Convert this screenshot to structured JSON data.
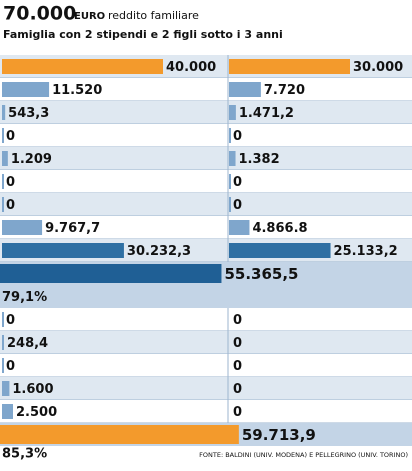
{
  "header": {
    "amount": "70.000",
    "unit": "EURO",
    "caption": "reddito familiare",
    "subtitle": "Famiglia con 2 stipendi e 2 figli sotto i 3 anni"
  },
  "section_a": [
    {
      "color": "#f39a2c",
      "left": {
        "value": 40000,
        "label": "40.000"
      },
      "right": {
        "value": 30000,
        "label": "30.000"
      }
    },
    {
      "color": "#7fa6cc",
      "left": {
        "value": 11520,
        "label": "11.520"
      },
      "right": {
        "value": 7720,
        "label": "7.720"
      }
    },
    {
      "color": "#7fa6cc",
      "left": {
        "value": 543.3,
        "label": "543,3"
      },
      "right": {
        "value": 1471.2,
        "label": "1.471,2"
      }
    },
    {
      "color": "#7fa6cc",
      "left": 0,
      "right": 0
    },
    {
      "color": "#7fa6cc",
      "left": {
        "value": 1209,
        "label": "1.209"
      },
      "right": {
        "value": 1382,
        "label": "1.382"
      }
    },
    {
      "color": "#7fa6cc",
      "left": 0,
      "right": 0
    },
    {
      "color": "#7fa6cc",
      "left": 0,
      "right": 0
    },
    {
      "color": "#7fa6cc",
      "left": {
        "value": 9767.7,
        "label": "9.767,7"
      },
      "right": {
        "value": 4866.8,
        "label": "4.866.8"
      }
    },
    {
      "color": "#2e6fa3",
      "left": {
        "value": 30232.3,
        "label": "30.232,3"
      },
      "right": {
        "value": 25133.2,
        "label": "25.133,2"
      }
    }
  ],
  "total_a": {
    "color": "#1f5f95",
    "value": 55365.5,
    "label": "55.365,5"
  },
  "share_a": "79,1%",
  "section_b": [
    {
      "color": "#7fa6cc",
      "left": 0,
      "right": 0
    },
    {
      "color": "#7fa6cc",
      "left": {
        "value": 248.4,
        "label": "248,4"
      },
      "right": 0
    },
    {
      "color": "#7fa6cc",
      "left": 0,
      "right": 0
    },
    {
      "color": "#7fa6cc",
      "left": {
        "value": 1600,
        "label": "1.600"
      },
      "right": 0
    },
    {
      "color": "#7fa6cc",
      "left": {
        "value": 2500,
        "label": "2.500"
      },
      "right": 0
    }
  ],
  "total_b": {
    "color": "#f39a2c",
    "value": 59713.9,
    "label": "59.713,9"
  },
  "share_b": "85,3%",
  "source": "FONTE: BALDINI (UNIV. MODENA) E PELLEGRINO (UNIV. TORINO)"
}
